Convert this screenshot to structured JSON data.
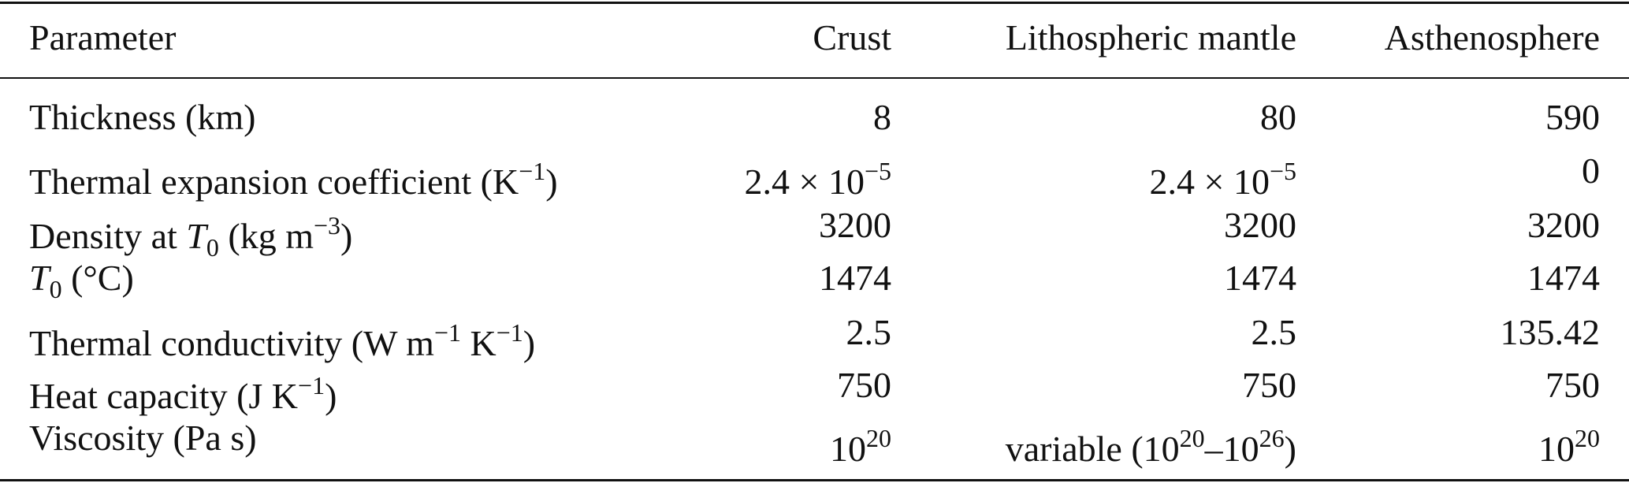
{
  "table": {
    "header": [
      "Parameter",
      "Crust",
      "Lithospheric mantle",
      "Asthenosphere"
    ],
    "rows": [
      [
        [
          {
            "text": "Thickness (km)"
          }
        ],
        [
          {
            "text": "8"
          }
        ],
        [
          {
            "text": "80"
          }
        ],
        [
          {
            "text": "590"
          }
        ]
      ],
      [
        [
          {
            "text": "Thermal expansion coefficient (K"
          },
          {
            "sup": "−1"
          },
          {
            "text": ")"
          }
        ],
        [
          {
            "text": "2.4 × 10"
          },
          {
            "sup": "−5"
          }
        ],
        [
          {
            "text": "2.4 × 10"
          },
          {
            "sup": "−5"
          }
        ],
        [
          {
            "text": "0"
          }
        ]
      ],
      [
        [
          {
            "text": "Density at "
          },
          {
            "i": "T"
          },
          {
            "sub": "0"
          },
          {
            "text": " (kg m"
          },
          {
            "sup": "−3"
          },
          {
            "text": ")"
          }
        ],
        [
          {
            "text": "3200"
          }
        ],
        [
          {
            "text": "3200"
          }
        ],
        [
          {
            "text": "3200"
          }
        ]
      ],
      [
        [
          {
            "i": "T"
          },
          {
            "sub": "0"
          },
          {
            "text": " (°C)"
          }
        ],
        [
          {
            "text": "1474"
          }
        ],
        [
          {
            "text": "1474"
          }
        ],
        [
          {
            "text": "1474"
          }
        ]
      ],
      [
        [
          {
            "text": "Thermal conductivity (W m"
          },
          {
            "sup": "−1"
          },
          {
            "text": " K"
          },
          {
            "sup": "−1"
          },
          {
            "text": ")"
          }
        ],
        [
          {
            "text": "2.5"
          }
        ],
        [
          {
            "text": "2.5"
          }
        ],
        [
          {
            "text": "135.42"
          }
        ]
      ],
      [
        [
          {
            "text": "Heat capacity (J K"
          },
          {
            "sup": "−1"
          },
          {
            "text": ")"
          }
        ],
        [
          {
            "text": "750"
          }
        ],
        [
          {
            "text": "750"
          }
        ],
        [
          {
            "text": "750"
          }
        ]
      ],
      [
        [
          {
            "text": "Viscosity (Pa s)"
          }
        ],
        [
          {
            "text": "10"
          },
          {
            "sup": "20"
          }
        ],
        [
          {
            "text": "variable (10"
          },
          {
            "sup": "20"
          },
          {
            "text": "–10"
          },
          {
            "sup": "26"
          },
          {
            "text": ")"
          }
        ],
        [
          {
            "text": "10"
          },
          {
            "sup": "20"
          }
        ]
      ]
    ]
  }
}
